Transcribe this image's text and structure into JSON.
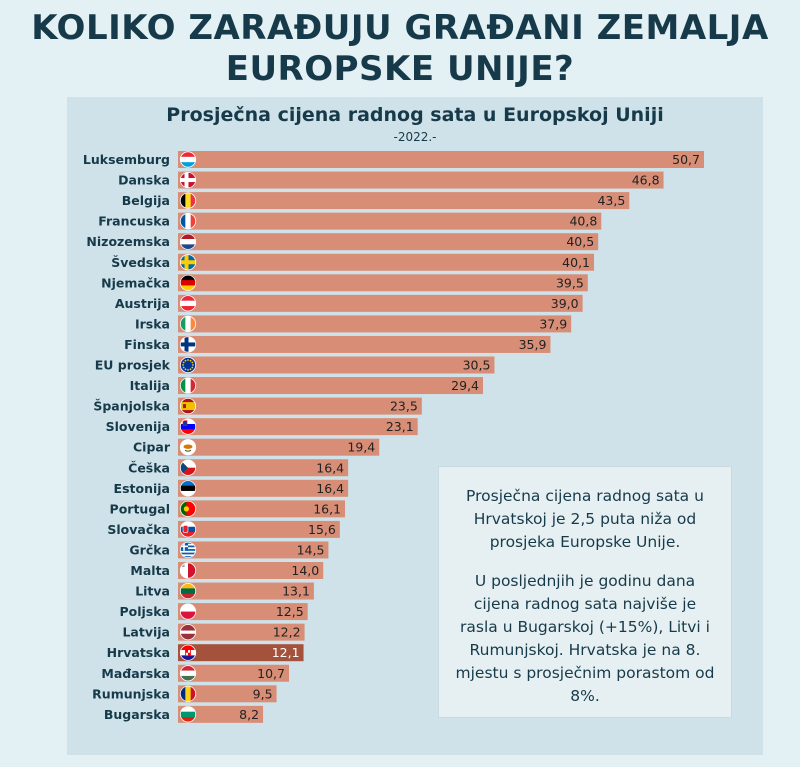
{
  "headline": {
    "line1": "KOLIKO ZARAĐUJU GRAĐANI ZEMALJA",
    "line2": "EUROPSKE UNIJE?"
  },
  "info": {
    "p1": "Prosječna cijena radnog sata u Hrvatskoj je 2,5 puta niža od prosjeka Europske Unije.",
    "p2": "U posljednjih je godinu dana cijena radnog sata najviše je rasla u Bugarskoj (+15%), Litvi i Rumunjskoj. Hrvatska je na 8. mjestu s prosječnim porastom od 8%."
  },
  "colors": {
    "bar": "#d88e76",
    "highlight_bar": "#a5523d",
    "title": "#173a4a"
  },
  "chart_data": {
    "type": "bar",
    "orientation": "horizontal",
    "title": "Prosječna cijena radnog sata u Europskoj Uniji",
    "subtitle": "-2022.-",
    "xlim": [
      0,
      55
    ],
    "highlight": "Hrvatska",
    "categories": [
      "Luksemburg",
      "Danska",
      "Belgija",
      "Francuska",
      "Nizozemska",
      "Švedska",
      "Njemačka",
      "Austrija",
      "Irska",
      "Finska",
      "EU prosjek",
      "Italija",
      "Španjolska",
      "Slovenija",
      "Cipar",
      "Češka",
      "Estonija",
      "Portugal",
      "Slovačka",
      "Grčka",
      "Malta",
      "Litva",
      "Poljska",
      "Latvija",
      "Hrvatska",
      "Mađarska",
      "Rumunjska",
      "Bugarska"
    ],
    "values": [
      50.7,
      46.8,
      43.5,
      40.8,
      40.5,
      40.1,
      39.5,
      39.0,
      37.9,
      35.9,
      30.5,
      29.4,
      23.5,
      23.1,
      19.4,
      16.4,
      16.4,
      16.1,
      15.6,
      14.5,
      14.0,
      13.1,
      12.5,
      12.2,
      12.1,
      10.7,
      9.5,
      8.2
    ],
    "value_labels": [
      "50,7",
      "46,8",
      "43,5",
      "40,8",
      "40,5",
      "40,1",
      "39,5",
      "39,0",
      "37,9",
      "35,9",
      "30,5",
      "29,4",
      "23,5",
      "23,1",
      "19,4",
      "16,4",
      "16,4",
      "16,1",
      "15,6",
      "14,5",
      "14,0",
      "13,1",
      "12,5",
      "12,2",
      "12,1",
      "10,7",
      "9,5",
      "8,2"
    ],
    "flags": [
      "LU",
      "DK",
      "BE",
      "FR",
      "NL",
      "SE",
      "DE",
      "AT",
      "IE",
      "FI",
      "EU",
      "IT",
      "ES",
      "SI",
      "CY",
      "CZ",
      "EE",
      "PT",
      "SK",
      "GR",
      "MT",
      "LT",
      "PL",
      "LV",
      "HR",
      "HU",
      "RO",
      "BG"
    ]
  }
}
